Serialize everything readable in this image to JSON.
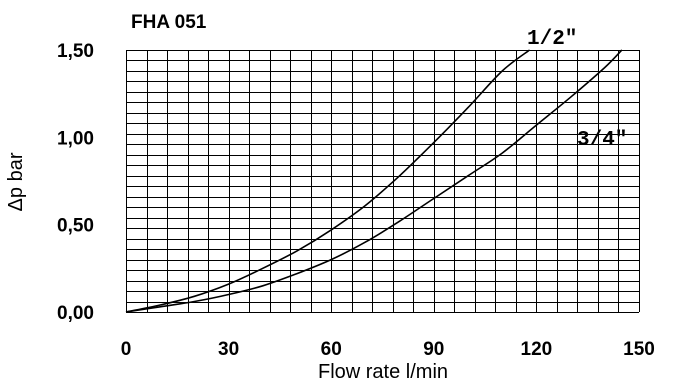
{
  "chart_data": {
    "type": "line",
    "title": "FHA 051",
    "xlabel": "Flow rate l/min",
    "ylabel": "Δp bar",
    "xlim": [
      0,
      150
    ],
    "ylim": [
      0,
      1.5
    ],
    "grid": true,
    "x_ticks": [
      0,
      30,
      60,
      90,
      120,
      150
    ],
    "x_tick_labels": [
      "0",
      "30",
      "60",
      "90",
      "120",
      "150"
    ],
    "y_ticks": [
      0,
      0.5,
      1.0,
      1.5
    ],
    "y_tick_labels": [
      "0,00",
      "0,50",
      "1,00",
      "1,50"
    ],
    "series": [
      {
        "name": "1/2\"",
        "x": [
          0,
          10,
          20,
          30,
          40,
          50,
          60,
          70,
          80,
          90,
          100,
          110,
          118
        ],
        "y": [
          0,
          0.04,
          0.09,
          0.16,
          0.25,
          0.35,
          0.47,
          0.61,
          0.78,
          0.97,
          1.17,
          1.38,
          1.5
        ]
      },
      {
        "name": "3/4\"",
        "x": [
          0,
          10,
          20,
          30,
          40,
          50,
          60,
          70,
          80,
          90,
          100,
          110,
          120,
          130,
          140,
          145
        ],
        "y": [
          0,
          0.03,
          0.06,
          0.1,
          0.15,
          0.22,
          0.3,
          0.4,
          0.52,
          0.65,
          0.78,
          0.91,
          1.07,
          1.23,
          1.4,
          1.5
        ]
      }
    ]
  }
}
